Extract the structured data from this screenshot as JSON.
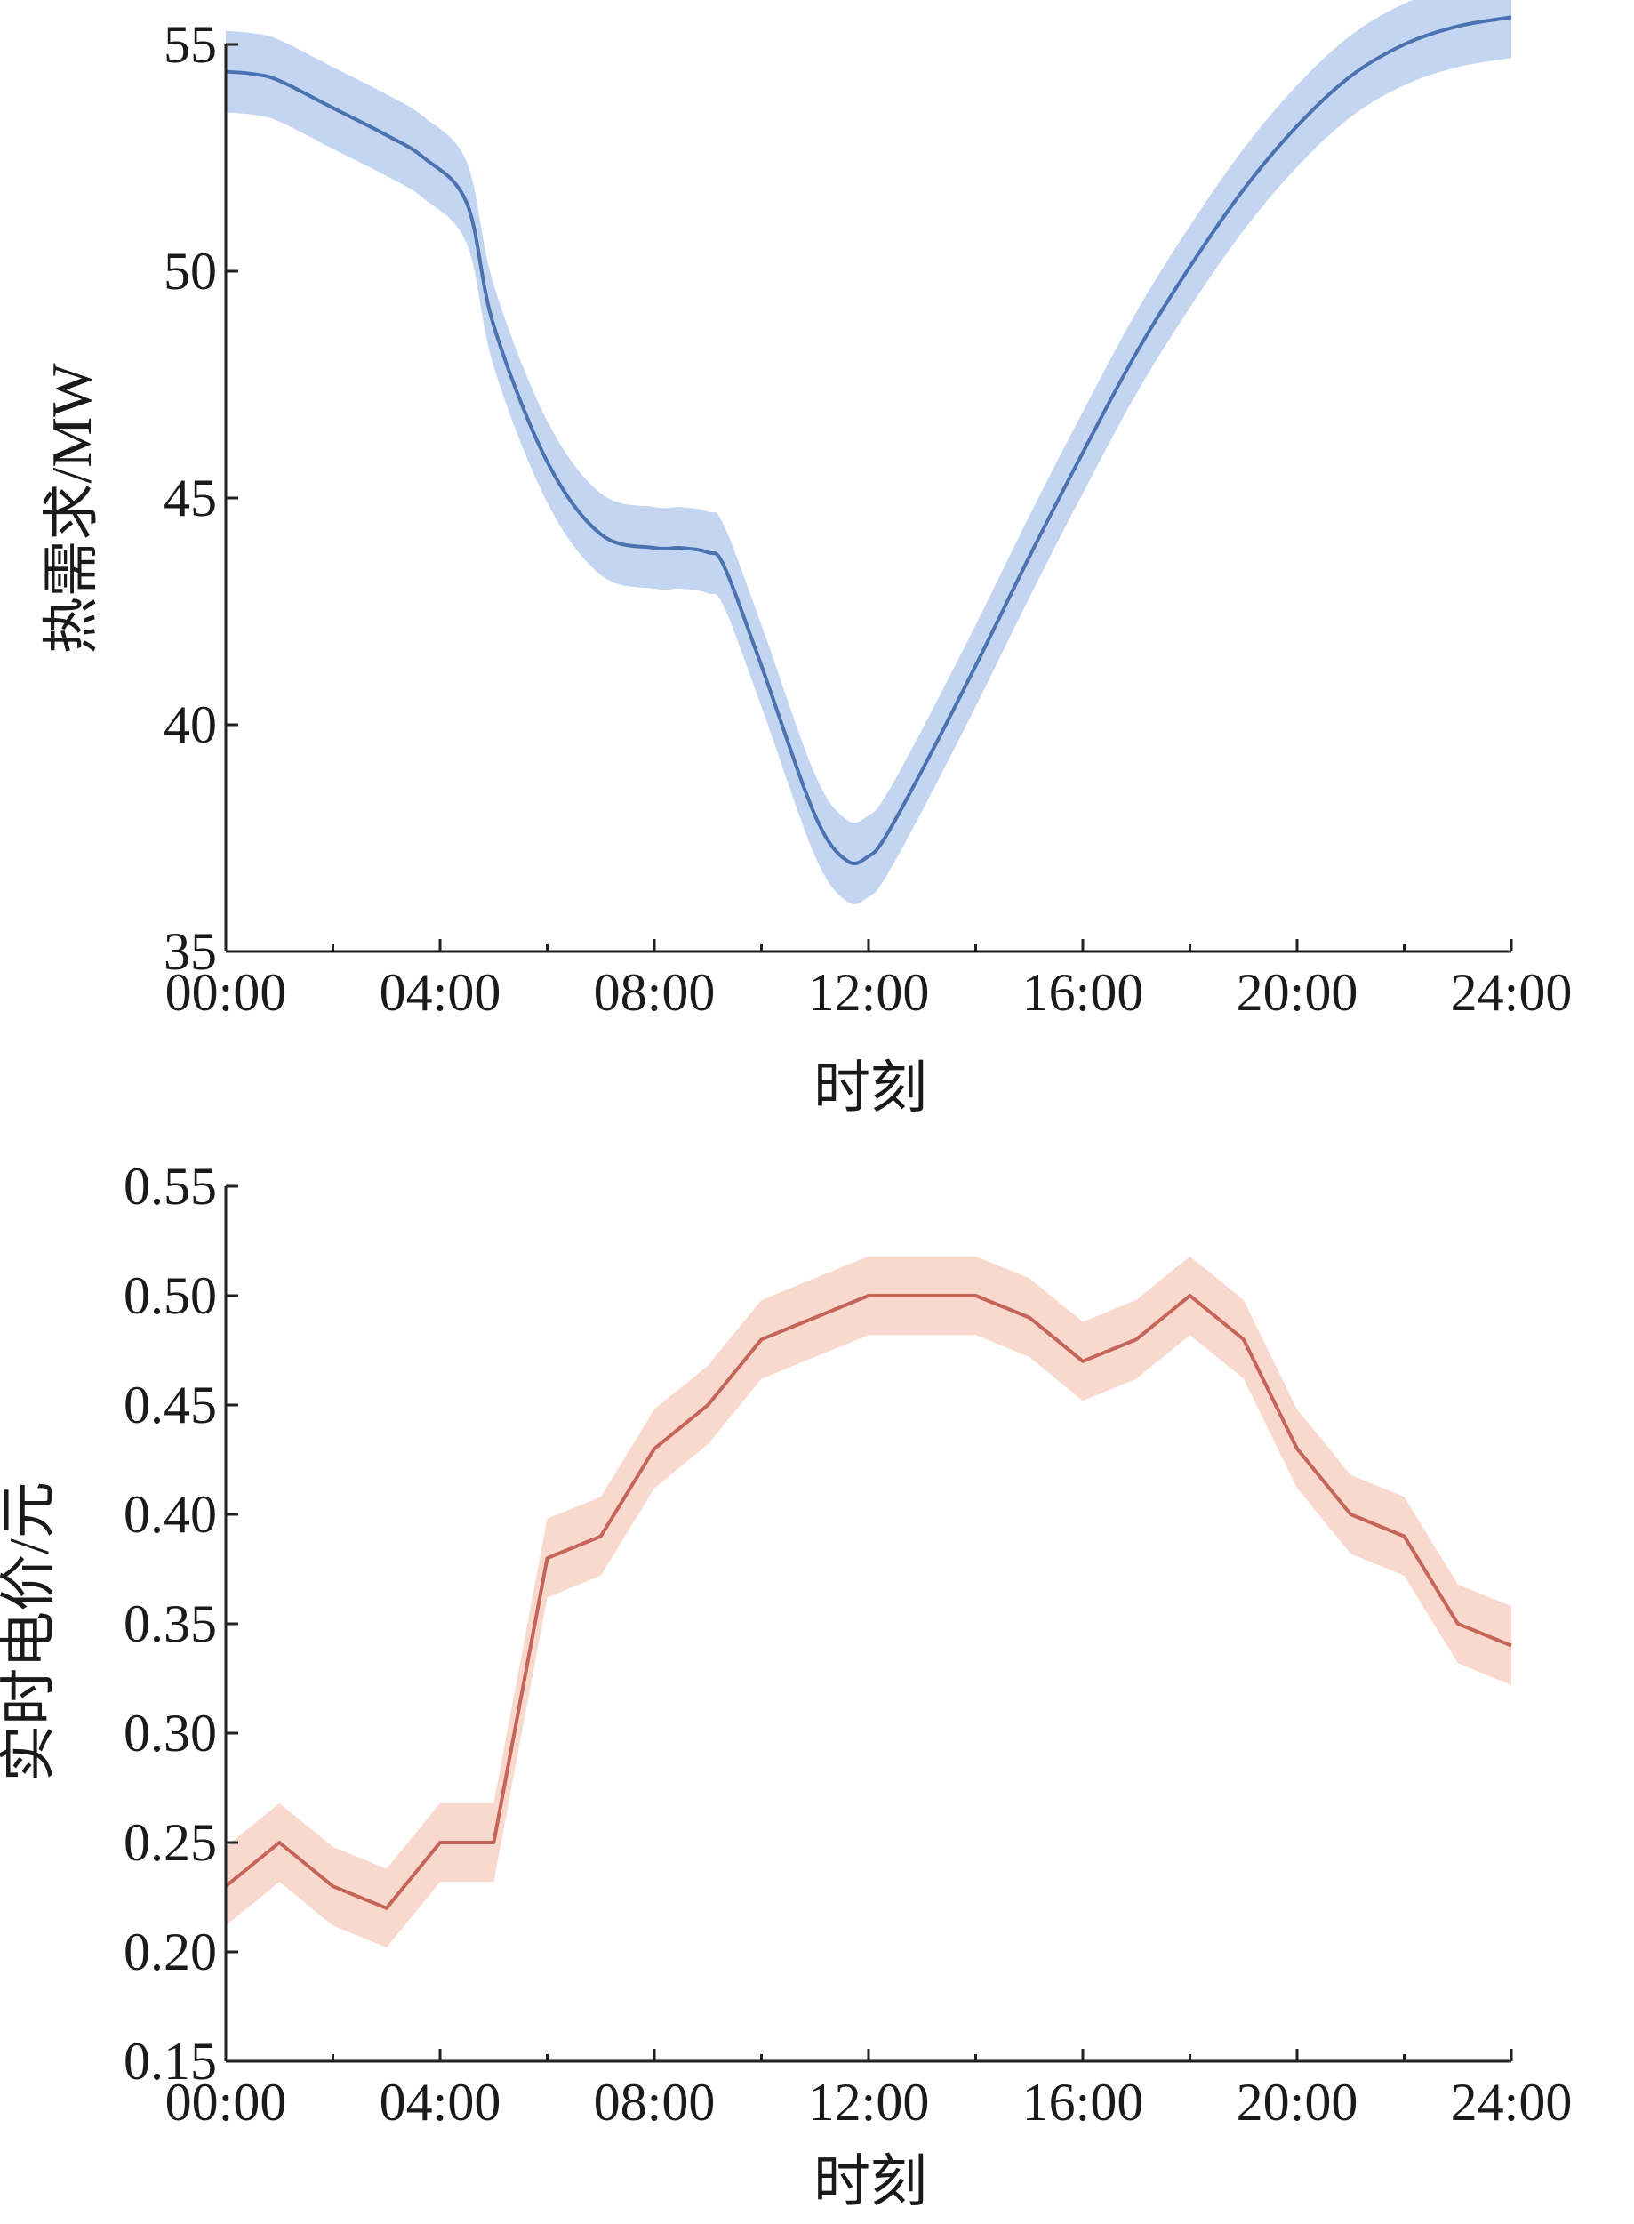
{
  "chart_data": [
    {
      "type": "line",
      "xlabel": "时刻",
      "ylabel": "热需求/MW",
      "xlim": [
        0,
        24
      ],
      "ylim": [
        35,
        55
      ],
      "x_ticks": [
        0,
        4,
        8,
        12,
        16,
        20,
        24
      ],
      "x_tick_labels": [
        "00:00",
        "04:00",
        "08:00",
        "12:00",
        "16:00",
        "20:00",
        "24:00"
      ],
      "y_ticks": [
        35,
        40,
        45,
        50,
        55
      ],
      "y_tick_labels": [
        "35",
        "40",
        "45",
        "50",
        "55"
      ],
      "grid": false,
      "series": [
        {
          "color": "#4a72b0",
          "band_color": "#a9c3ea",
          "x": [
            0,
            0.5,
            1,
            2,
            3,
            3.7,
            4.5,
            5,
            6,
            7,
            8,
            8.5,
            9,
            9.3,
            10,
            11,
            11.6,
            12,
            12.3,
            13,
            14,
            15,
            16,
            17,
            18,
            19,
            20,
            21,
            22,
            23,
            24
          ],
          "values": [
            54.4,
            54.35,
            54.2,
            53.6,
            53.0,
            52.5,
            51.5,
            48.8,
            45.8,
            44.2,
            43.9,
            43.9,
            43.8,
            43.5,
            41.3,
            38.0,
            37.0,
            37.1,
            37.5,
            39.0,
            41.3,
            43.7,
            46.0,
            48.2,
            50.1,
            51.8,
            53.2,
            54.3,
            55.0,
            55.4,
            55.6
          ],
          "band": 0.9
        }
      ]
    },
    {
      "type": "line",
      "xlabel": "时刻",
      "ylabel": "实时电价/元",
      "xlim": [
        0,
        24
      ],
      "ylim": [
        0.15,
        0.55
      ],
      "x_ticks": [
        0,
        4,
        8,
        12,
        16,
        20,
        24
      ],
      "x_tick_labels": [
        "00:00",
        "04:00",
        "08:00",
        "12:00",
        "16:00",
        "20:00",
        "24:00"
      ],
      "y_ticks": [
        0.15,
        0.2,
        0.25,
        0.3,
        0.35,
        0.4,
        0.45,
        0.5,
        0.55
      ],
      "y_tick_labels": [
        "0.15",
        "0.20",
        "0.25",
        "0.30",
        "0.35",
        "0.40",
        "0.45",
        "0.50",
        "0.55"
      ],
      "grid": false,
      "series": [
        {
          "color": "#c5655a",
          "band_color": "#f6c8b8",
          "x": [
            0,
            1,
            2,
            3,
            4,
            5,
            6,
            7,
            8,
            9,
            10,
            11,
            12,
            13,
            14,
            15,
            16,
            17,
            18,
            19,
            20,
            21,
            22,
            23,
            24
          ],
          "values": [
            0.23,
            0.25,
            0.23,
            0.22,
            0.25,
            0.25,
            0.38,
            0.39,
            0.43,
            0.45,
            0.48,
            0.49,
            0.5,
            0.5,
            0.5,
            0.49,
            0.47,
            0.48,
            0.5,
            0.48,
            0.43,
            0.4,
            0.39,
            0.35,
            0.34
          ],
          "band": 0.018
        }
      ]
    }
  ]
}
